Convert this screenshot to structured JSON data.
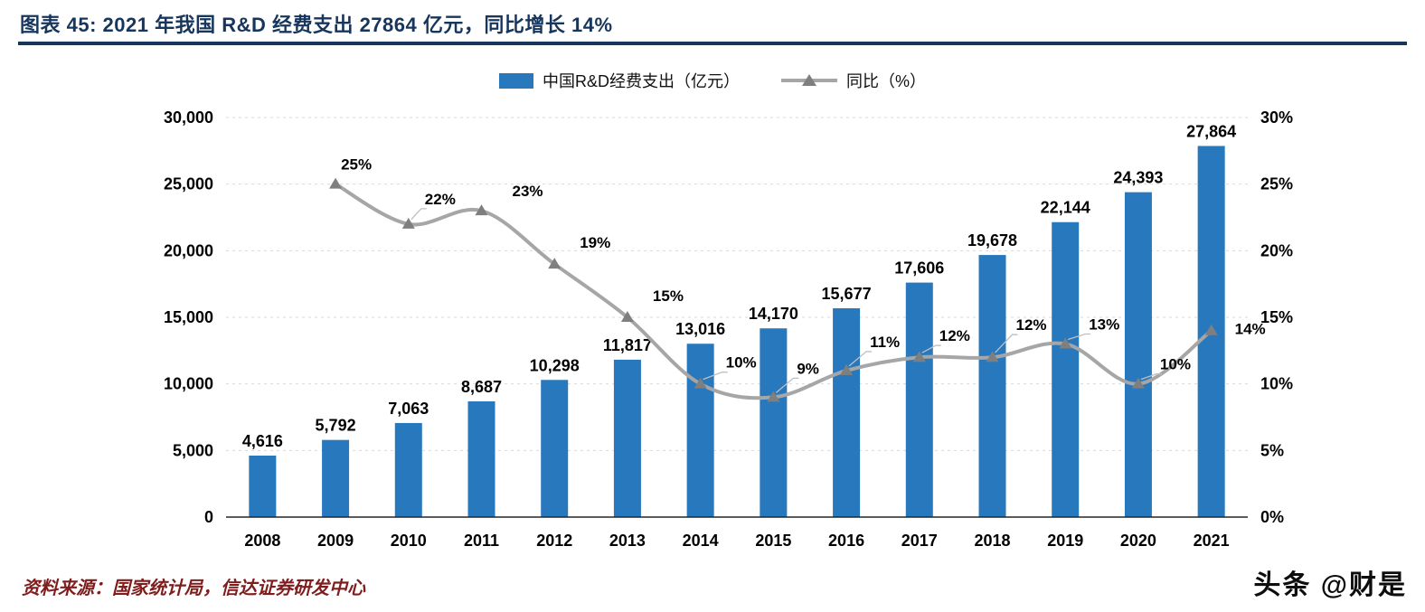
{
  "header": {
    "title": "图表 45:  2021 年我国 R&D 经费支出 27864 亿元，同比增长 14%"
  },
  "legend": [
    {
      "label": "中国R&D经费支出（亿元）",
      "type": "bar"
    },
    {
      "label": "同比（%）",
      "type": "line"
    }
  ],
  "chart_data": {
    "type": "bar+line",
    "title": "2021 年我国 R&D 经费支出 27864 亿元，同比增长 14%",
    "categories": [
      "2008",
      "2009",
      "2010",
      "2011",
      "2012",
      "2013",
      "2014",
      "2015",
      "2016",
      "2017",
      "2018",
      "2019",
      "2020",
      "2021"
    ],
    "series": [
      {
        "name": "中国R&D经费支出（亿元）",
        "type": "bar",
        "axis": "left",
        "values": [
          4616,
          5792,
          7063,
          8687,
          10298,
          11817,
          13016,
          14170,
          15677,
          17606,
          19678,
          22144,
          24393,
          27864
        ],
        "labels": [
          "4,616",
          "5,792",
          "7,063",
          "8,687",
          "10,298",
          "11,817",
          "13,016",
          "14,170",
          "15,677",
          "17,606",
          "19,678",
          "22,144",
          "24,393",
          "27,864"
        ]
      },
      {
        "name": "同比（%）",
        "type": "line",
        "axis": "right",
        "values": [
          null,
          25,
          22,
          23,
          19,
          15,
          10,
          9,
          11,
          12,
          12,
          13,
          10,
          14
        ],
        "labels": [
          "",
          "25%",
          "22%",
          "23%",
          "19%",
          "15%",
          "10%",
          "9%",
          "11%",
          "12%",
          "12%",
          "13%",
          "10%",
          "14%"
        ]
      }
    ],
    "left_axis": {
      "min": 0,
      "max": 30000,
      "step": 5000,
      "ticks": [
        "0",
        "5,000",
        "10,000",
        "15,000",
        "20,000",
        "25,000",
        "30,000"
      ]
    },
    "right_axis": {
      "min": 0,
      "max": 30,
      "step": 5,
      "ticks": [
        "0%",
        "5%",
        "10%",
        "15%",
        "20%",
        "25%",
        "30%"
      ]
    },
    "grid": {
      "horizontal": true,
      "style": "dashed"
    },
    "legend_position": "top"
  },
  "footer": {
    "source": "资料来源：国家统计局，信达证券研发中心",
    "watermark": "头条 @财是"
  },
  "colors": {
    "bar": "#2878BD",
    "line": "#A6A6A6",
    "marker": "#7F7F7F",
    "grid": "#D9D9D9",
    "axis_line": "#262626",
    "title": "#17365D",
    "divider": "#17365D",
    "source_text": "#7F1D1D"
  }
}
